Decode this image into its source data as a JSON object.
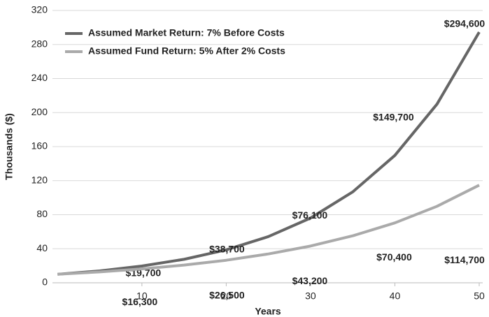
{
  "chart_data": {
    "type": "line",
    "x_label": "Years",
    "y_label": "Thousands ($)",
    "x": [
      0,
      5,
      10,
      15,
      20,
      25,
      30,
      35,
      40,
      45,
      50
    ],
    "series": [
      {
        "name": "Assumed Market Return: 7% Before Costs",
        "color": "#666666",
        "values": [
          10,
          14.0,
          19.7,
          27.6,
          38.7,
          54.3,
          76.1,
          106.8,
          149.7,
          210.0,
          294.6
        ],
        "value_labels": [
          null,
          null,
          "$19,700",
          null,
          "$38,700",
          null,
          "$76,100",
          null,
          "$149,700",
          null,
          "$294,600"
        ]
      },
      {
        "name": "Assumed Fund Return: 5% After 2% Costs",
        "color": "#aaaaaa",
        "values": [
          10,
          12.8,
          16.3,
          20.8,
          26.5,
          33.9,
          43.2,
          55.2,
          70.4,
          89.9,
          114.7
        ],
        "value_labels": [
          null,
          null,
          "$16,300",
          null,
          "$26,500",
          null,
          "$43,200",
          null,
          "$70,400",
          null,
          "$114,700"
        ]
      }
    ],
    "xlim": [
      0,
      50
    ],
    "xticks": [
      10,
      20,
      30,
      40,
      50
    ],
    "ylim": [
      0,
      320
    ],
    "yticks": [
      0,
      40,
      80,
      120,
      160,
      200,
      240,
      280,
      320
    ],
    "grid": true,
    "legend": "upper left"
  }
}
